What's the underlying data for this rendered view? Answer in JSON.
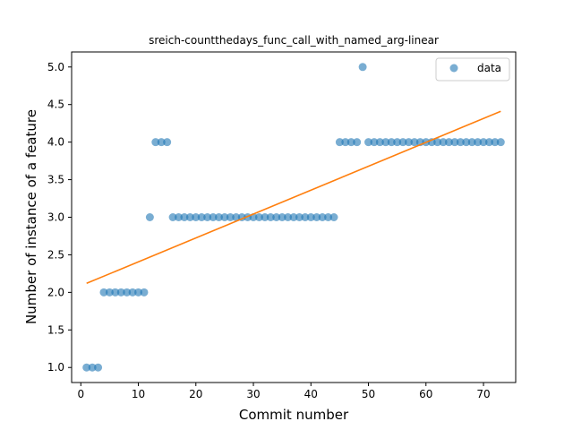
{
  "chart_data": {
    "type": "scatter",
    "title": "sreich-countthedays_func_call_with_named_arg-linear",
    "xlabel": "Commit number",
    "ylabel": "Number of instance of a feature",
    "xlim": [
      -1.6,
      75.6
    ],
    "ylim": [
      0.8,
      5.2
    ],
    "xticks": [
      0,
      10,
      20,
      30,
      40,
      50,
      60,
      70
    ],
    "yticks": [
      1.0,
      1.5,
      2.0,
      2.5,
      3.0,
      3.5,
      4.0,
      4.5,
      5.0
    ],
    "grid": false,
    "legend": {
      "placement": "upper-right",
      "entries": [
        "data"
      ]
    },
    "colors": {
      "data": "#1f77b4",
      "fit": "#ff7f0e"
    },
    "series": [
      {
        "name": "data",
        "kind": "scatter",
        "x": [
          1,
          2,
          3,
          4,
          5,
          6,
          7,
          8,
          9,
          10,
          11,
          12,
          13,
          14,
          15,
          16,
          17,
          18,
          19,
          20,
          21,
          22,
          23,
          24,
          25,
          26,
          27,
          28,
          29,
          30,
          31,
          32,
          33,
          34,
          35,
          36,
          37,
          38,
          39,
          40,
          41,
          42,
          43,
          44,
          45,
          46,
          47,
          48,
          49,
          50,
          51,
          52,
          53,
          54,
          55,
          56,
          57,
          58,
          59,
          60,
          61,
          62,
          63,
          64,
          65,
          66,
          67,
          68,
          69,
          70,
          71,
          72,
          73
        ],
        "y": [
          1,
          1,
          1,
          2,
          2,
          2,
          2,
          2,
          2,
          2,
          2,
          3,
          4,
          4,
          4,
          3,
          3,
          3,
          3,
          3,
          3,
          3,
          3,
          3,
          3,
          3,
          3,
          3,
          3,
          3,
          3,
          3,
          3,
          3,
          3,
          3,
          3,
          3,
          3,
          3,
          3,
          3,
          3,
          3,
          4,
          4,
          4,
          4,
          5,
          4,
          4,
          4,
          4,
          4,
          4,
          4,
          4,
          4,
          4,
          4,
          4,
          4,
          4,
          4,
          4,
          4,
          4,
          4,
          4,
          4,
          4,
          4,
          4
        ]
      },
      {
        "kind": "line",
        "x": [
          1,
          73
        ],
        "y": [
          2.12,
          4.41
        ]
      }
    ]
  }
}
